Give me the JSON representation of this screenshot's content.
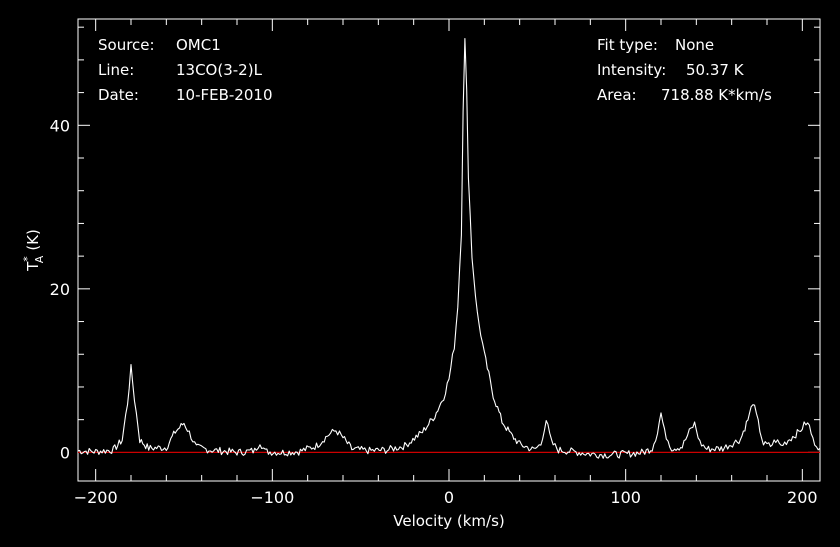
{
  "info": {
    "source_label": "Source:",
    "source_value": "OMC1",
    "line_label": "Line:",
    "line_value": "13CO(3-2)L",
    "date_label": "Date:",
    "date_value": "10-FEB-2010",
    "fit_label": "Fit type:",
    "fit_value": "None",
    "intensity_label": "Intensity:",
    "intensity_value": "50.37 K",
    "area_label": "Area:",
    "area_value": "718.88 K*km/s"
  },
  "colors": {
    "background": "#000000",
    "spectrum": "#ffffff",
    "baseline": "#cc0000",
    "axes": "#ffffff"
  },
  "chart_data": {
    "type": "line",
    "xlabel": "Velocity (km/s)",
    "ylabel": "T",
    "ylabel_sub": "A",
    "ylabel_sup": "*",
    "ylabel_unit": "(K)",
    "xlim": [
      -210,
      210
    ],
    "ylim": [
      -3.5,
      53
    ],
    "xticks": [
      -200,
      -100,
      0,
      100,
      200
    ],
    "xtick_labels": [
      "−200",
      "−100",
      "0",
      "100",
      "200"
    ],
    "yticks": [
      0,
      20,
      40
    ],
    "ytick_labels": [
      "0",
      "20",
      "40"
    ],
    "baseline_value": 0,
    "grid": false,
    "legend": "none",
    "series": [
      {
        "x": [
          -210,
          -200,
          -190,
          -185,
          -182,
          -180,
          -178,
          -175,
          -170,
          -160,
          -155,
          -150,
          -147,
          -143,
          -135,
          -120,
          -110,
          -107,
          -104,
          -95,
          -85,
          -75,
          -68,
          -64,
          -60,
          -55,
          -45,
          -35,
          -25,
          -15,
          -8,
          -3,
          0,
          3,
          5,
          7,
          8,
          9,
          10,
          11,
          13,
          16,
          20,
          25,
          30,
          35,
          40,
          48,
          52,
          55,
          58,
          62,
          70,
          80,
          90,
          100,
          110,
          115,
          118,
          120,
          122,
          126,
          132,
          136,
          139,
          140,
          142,
          146,
          155,
          165,
          170,
          172,
          174,
          178,
          182,
          185,
          188,
          192,
          198,
          202,
          204,
          206,
          210
        ],
        "y": [
          0.2,
          0.1,
          0.3,
          1.5,
          6,
          10.3,
          6.5,
          1.5,
          0.5,
          0.6,
          2.5,
          3.6,
          2.4,
          0.6,
          0.3,
          0,
          0.2,
          1.3,
          0.1,
          0,
          0.1,
          0.8,
          2.2,
          2.7,
          1.8,
          0.4,
          0.2,
          0.3,
          0.8,
          2.5,
          4.5,
          6.8,
          9,
          13,
          18,
          27,
          42,
          50.4,
          44,
          34,
          24,
          17,
          12,
          7,
          3.8,
          2.2,
          1,
          0.3,
          1,
          4,
          1.2,
          0.3,
          0.1,
          -0.2,
          -0.3,
          -0.2,
          0,
          0.5,
          2.5,
          4.8,
          2.5,
          0.5,
          0.7,
          2.5,
          3.5,
          2.8,
          1.2,
          0.4,
          0.5,
          1.6,
          4.5,
          6.2,
          4.5,
          1.0,
          0.8,
          1.5,
          0.8,
          1.5,
          2.5,
          3.6,
          3.2,
          1.5,
          0.5
        ]
      }
    ]
  }
}
